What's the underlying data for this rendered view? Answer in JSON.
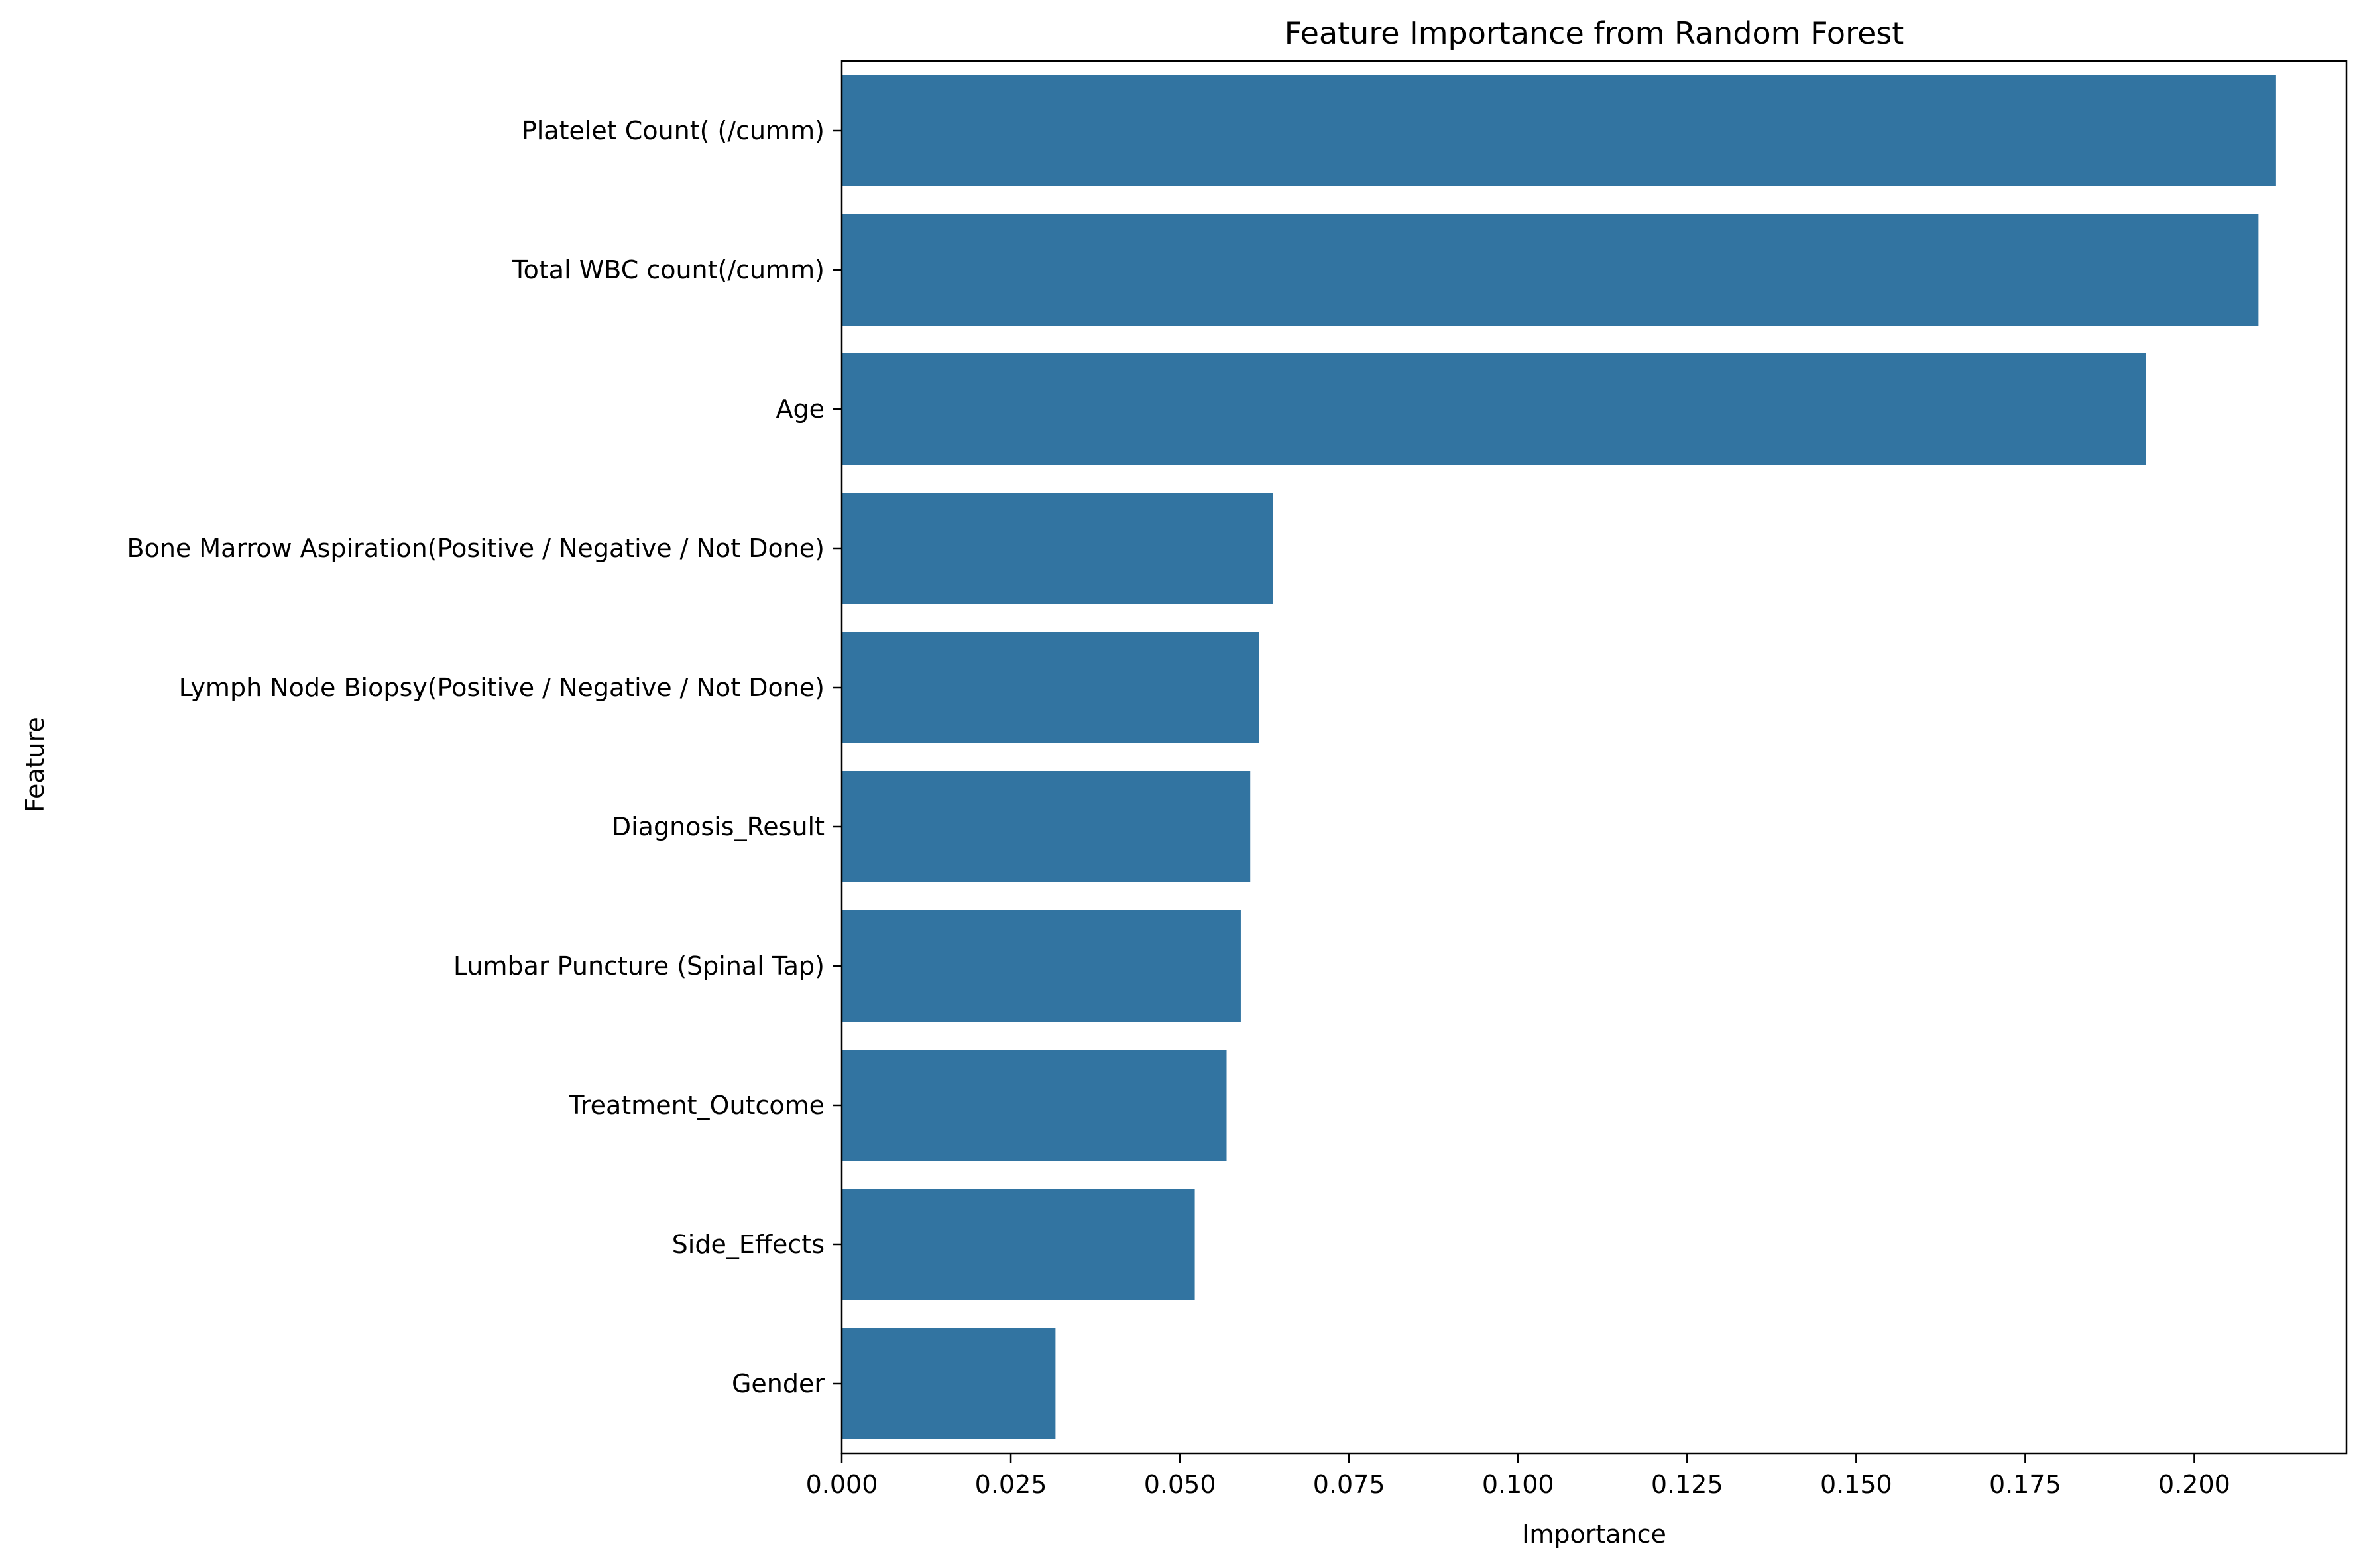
{
  "chart_data": {
    "type": "bar",
    "orientation": "horizontal",
    "title": "Feature Importance from Random Forest",
    "xlabel": "Importance",
    "ylabel": "Feature",
    "bar_color": "#3274a1",
    "categories": [
      "Platelet Count( (/cumm)",
      "Total WBC count(/cumm)",
      "Age",
      "Bone Marrow Aspiration(Positive / Negative / Not Done)",
      "Lymph Node Biopsy(Positive / Negative / Not Done)",
      "Diagnosis_Result",
      "Lumbar Puncture (Spinal Tap)",
      "Treatment_Outcome",
      "Side_Effects",
      "Gender"
    ],
    "values": [
      0.212,
      0.2095,
      0.1928,
      0.0638,
      0.0617,
      0.0604,
      0.059,
      0.0569,
      0.0522,
      0.0316
    ],
    "xlim": [
      0,
      0.2225
    ],
    "xticks": [
      0.0,
      0.025,
      0.05,
      0.075,
      0.1,
      0.125,
      0.15,
      0.175,
      0.2
    ],
    "xtick_labels": [
      "0.000",
      "0.025",
      "0.050",
      "0.075",
      "0.100",
      "0.125",
      "0.150",
      "0.175",
      "0.200"
    ],
    "grid": false,
    "legend": "none"
  }
}
